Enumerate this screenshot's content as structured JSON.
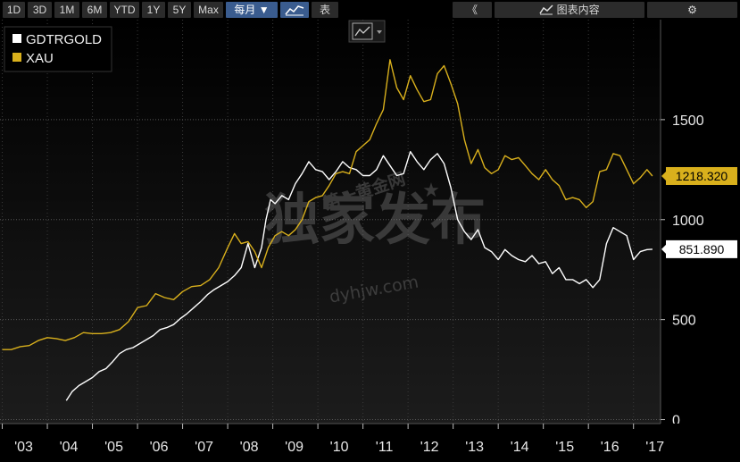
{
  "toolbar": {
    "ranges": [
      "1D",
      "3D",
      "1M",
      "6M",
      "YTD",
      "1Y",
      "5Y",
      "Max"
    ],
    "frequency": "每月 ▼",
    "table_label": "表",
    "collapse_glyph": "《",
    "chart_content_label": "图表内容",
    "settings_glyph": "⚙"
  },
  "watermark": {
    "main": "独家发布",
    "site_cn": "第一黄金网",
    "site_url": "dyhjw.com"
  },
  "colors": {
    "gdtr": "#ffffff",
    "xau": "#d9b01c",
    "background": "#000000"
  },
  "chart_data": {
    "type": "line",
    "title": "",
    "xlabel": "",
    "ylabel": "",
    "xlim": [
      2002.95,
      2017.6
    ],
    "ylim": [
      -20,
      2000
    ],
    "yticks": [
      0,
      500,
      1000,
      1500
    ],
    "xtick_labels": [
      "'03",
      "'04",
      "'05",
      "'06",
      "'07",
      "'08",
      "'09",
      "'10",
      "'11",
      "'12",
      "'13",
      "'14",
      "'15",
      "'16",
      "'17"
    ],
    "xtick_positions": [
      2003,
      2004,
      2005,
      2006,
      2007,
      2008,
      2009,
      2010,
      2011,
      2012,
      2013,
      2014,
      2015,
      2016,
      2017
    ],
    "legend_position": "top-left",
    "series": [
      {
        "name": "GDTRGOLD",
        "color": "#ffffff",
        "last_value": "851.890",
        "x": [
          2004.42,
          2004.55,
          2004.7,
          2004.85,
          2005.0,
          2005.15,
          2005.3,
          2005.45,
          2005.6,
          2005.75,
          2005.9,
          2006.05,
          2006.2,
          2006.35,
          2006.5,
          2006.65,
          2006.8,
          2006.95,
          2007.1,
          2007.25,
          2007.4,
          2007.55,
          2007.7,
          2007.85,
          2008.0,
          2008.15,
          2008.3,
          2008.45,
          2008.6,
          2008.75,
          2008.85,
          2008.95,
          2009.05,
          2009.2,
          2009.35,
          2009.5,
          2009.65,
          2009.8,
          2009.95,
          2010.1,
          2010.25,
          2010.4,
          2010.55,
          2010.7,
          2010.85,
          2011.0,
          2011.15,
          2011.3,
          2011.45,
          2011.6,
          2011.75,
          2011.9,
          2012.05,
          2012.2,
          2012.35,
          2012.5,
          2012.65,
          2012.8,
          2012.95,
          2013.1,
          2013.25,
          2013.4,
          2013.55,
          2013.7,
          2013.85,
          2014.0,
          2014.15,
          2014.3,
          2014.45,
          2014.6,
          2014.75,
          2014.9,
          2015.05,
          2015.2,
          2015.35,
          2015.5,
          2015.65,
          2015.8,
          2015.95,
          2016.1,
          2016.25,
          2016.4,
          2016.55,
          2016.7,
          2016.85,
          2017.0,
          2017.15,
          2017.3,
          2017.42
        ],
        "y": [
          95,
          140,
          170,
          190,
          210,
          240,
          255,
          290,
          330,
          350,
          360,
          380,
          400,
          420,
          450,
          460,
          475,
          505,
          530,
          560,
          590,
          625,
          650,
          670,
          690,
          720,
          760,
          880,
          760,
          860,
          1000,
          1100,
          1080,
          1120,
          1100,
          1180,
          1230,
          1290,
          1250,
          1240,
          1200,
          1240,
          1290,
          1260,
          1250,
          1220,
          1220,
          1250,
          1320,
          1270,
          1220,
          1230,
          1340,
          1290,
          1250,
          1300,
          1330,
          1280,
          1160,
          1000,
          940,
          900,
          950,
          860,
          840,
          800,
          850,
          820,
          800,
          790,
          820,
          780,
          790,
          730,
          760,
          700,
          700,
          680,
          700,
          660,
          700,
          880,
          960,
          940,
          920,
          800,
          840,
          850,
          852
        ]
      },
      {
        "name": "XAU",
        "color": "#d9b01c",
        "last_value": "1218.320",
        "x": [
          2003.0,
          2003.2,
          2003.4,
          2003.6,
          2003.8,
          2004.0,
          2004.2,
          2004.4,
          2004.6,
          2004.8,
          2005.0,
          2005.2,
          2005.4,
          2005.6,
          2005.8,
          2006.0,
          2006.2,
          2006.4,
          2006.6,
          2006.8,
          2007.0,
          2007.2,
          2007.4,
          2007.6,
          2007.8,
          2008.0,
          2008.15,
          2008.3,
          2008.45,
          2008.6,
          2008.75,
          2008.9,
          2009.05,
          2009.2,
          2009.35,
          2009.5,
          2009.65,
          2009.8,
          2009.95,
          2010.1,
          2010.25,
          2010.4,
          2010.55,
          2010.7,
          2010.85,
          2011.0,
          2011.15,
          2011.3,
          2011.45,
          2011.6,
          2011.75,
          2011.9,
          2012.05,
          2012.2,
          2012.35,
          2012.5,
          2012.65,
          2012.8,
          2012.95,
          2013.1,
          2013.25,
          2013.4,
          2013.55,
          2013.7,
          2013.85,
          2014.0,
          2014.15,
          2014.3,
          2014.45,
          2014.6,
          2014.75,
          2014.9,
          2015.05,
          2015.2,
          2015.35,
          2015.5,
          2015.65,
          2015.8,
          2015.95,
          2016.1,
          2016.25,
          2016.4,
          2016.55,
          2016.7,
          2016.85,
          2017.0,
          2017.15,
          2017.3,
          2017.42
        ],
        "y": [
          350,
          350,
          365,
          370,
          395,
          410,
          405,
          395,
          410,
          435,
          430,
          430,
          435,
          450,
          490,
          560,
          570,
          630,
          610,
          600,
          640,
          665,
          670,
          700,
          760,
          860,
          930,
          880,
          890,
          840,
          760,
          860,
          920,
          940,
          920,
          950,
          1000,
          1090,
          1110,
          1120,
          1170,
          1230,
          1240,
          1230,
          1340,
          1370,
          1400,
          1480,
          1550,
          1800,
          1660,
          1600,
          1720,
          1650,
          1590,
          1600,
          1730,
          1770,
          1680,
          1580,
          1400,
          1280,
          1350,
          1260,
          1230,
          1250,
          1320,
          1300,
          1310,
          1270,
          1230,
          1200,
          1250,
          1200,
          1170,
          1100,
          1110,
          1100,
          1060,
          1090,
          1240,
          1250,
          1330,
          1320,
          1250,
          1180,
          1210,
          1250,
          1218
        ]
      }
    ]
  }
}
